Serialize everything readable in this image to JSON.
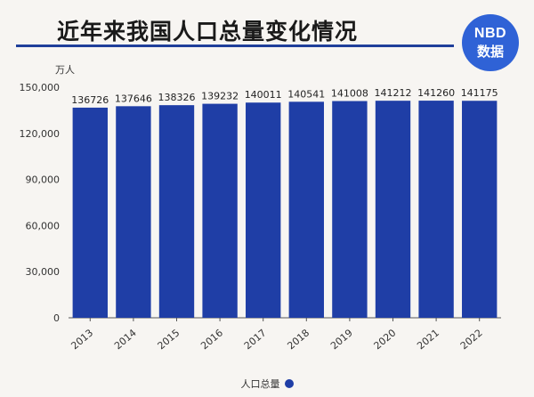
{
  "header": {
    "title": "近年来我国人口总量变化情况",
    "logo_line1": "NBD",
    "logo_line2": "数据"
  },
  "colors": {
    "bar": "#1f3ea6",
    "title_rule": "#1f3f9a",
    "logo": "#2f62d6"
  },
  "chart_data": {
    "type": "bar",
    "title": "近年来我国人口总量变化情况",
    "unit": "万人",
    "categories": [
      "2013",
      "2014",
      "2015",
      "2016",
      "2017",
      "2018",
      "2019",
      "2020",
      "2021",
      "2022"
    ],
    "series": [
      {
        "name": "人口总量",
        "values": [
          136726,
          137646,
          138326,
          139232,
          140011,
          140541,
          141008,
          141212,
          141260,
          141175
        ],
        "value_labels": [
          "136726",
          "137646",
          "138326",
          "139232",
          "140011",
          "140541",
          "141008",
          "141212",
          "141260",
          "141175"
        ]
      }
    ],
    "yticks": [
      "0",
      "30,000",
      "60,000",
      "90,000",
      "120,000",
      "150,000"
    ],
    "ytick_values": [
      0,
      30000,
      60000,
      90000,
      120000,
      150000
    ],
    "ylim": [
      0,
      150000
    ],
    "grid": false,
    "legend": "bottom-center"
  }
}
